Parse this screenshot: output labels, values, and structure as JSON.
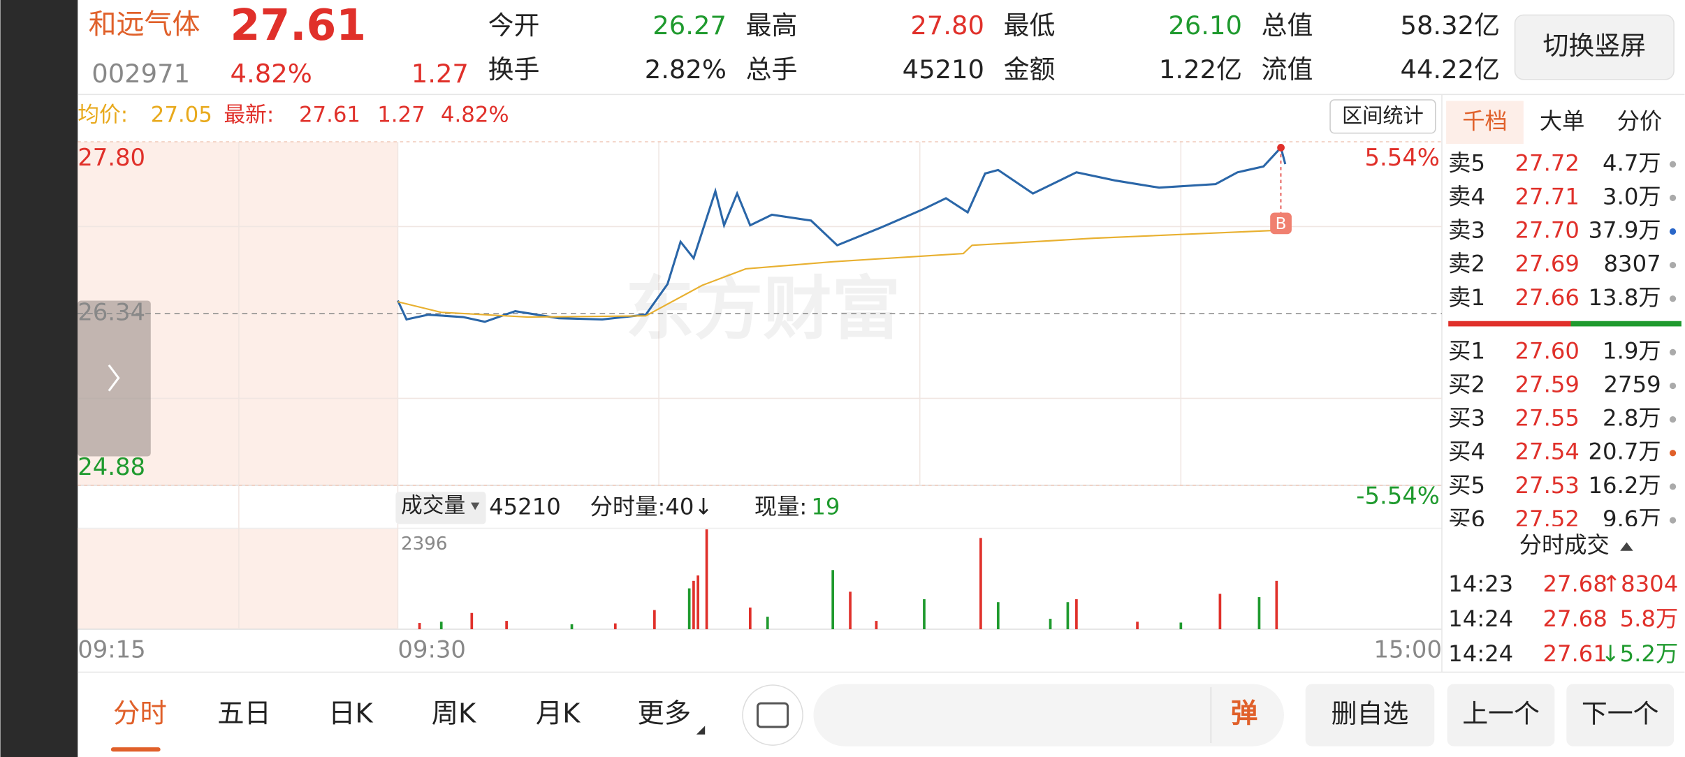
{
  "header": {
    "name": "和远气体",
    "price": "27.61",
    "code": "002971",
    "change_pct": "4.82%",
    "change": "1.27",
    "stats": [
      [
        "今开",
        "26.27"
      ],
      [
        "最高",
        "27.80"
      ],
      [
        "最低",
        "26.10"
      ],
      [
        "总值",
        "58.32亿"
      ],
      [
        "换手",
        "2.82%"
      ],
      [
        "总手",
        "45210"
      ],
      [
        "金额",
        "1.22亿"
      ],
      [
        "流值",
        "44.22亿"
      ]
    ],
    "button": "切换竖屏"
  },
  "chart_data": {
    "type": "line",
    "avg_label": "均价:",
    "avg": "27.05",
    "latest_label": "最新:",
    "latest": "27.61",
    "change": "1.27",
    "change_pct": "4.82%",
    "range_button": "区间统计",
    "ylim": [
      24.88,
      27.8
    ],
    "yticks": [
      {
        "value": 24.88,
        "label": "24.88"
      },
      {
        "value": 26.34,
        "label": "26.34"
      },
      {
        "value": 27.8,
        "label": "27.80"
      }
    ],
    "pct_high": "5.54%",
    "pct_low": "-5.54%",
    "xlim": [
      0,
      240
    ],
    "xticks": [
      {
        "value": 0,
        "label": "09:30"
      },
      {
        "value": 240,
        "label": "15:00"
      }
    ],
    "pre_label": "09:15",
    "watermark": "东方财富",
    "series": [
      {
        "color": "#2a66a8",
        "x": [
          0,
          2,
          7,
          15,
          20,
          27,
          37,
          47,
          57,
          62,
          65,
          68,
          73,
          75,
          78,
          81,
          86,
          95,
          101,
          111,
          121,
          126,
          131,
          135,
          138,
          146,
          156,
          165,
          175,
          188,
          193,
          199,
          203,
          204
        ],
        "values": [
          26.45,
          26.29,
          26.33,
          26.31,
          26.27,
          26.36,
          26.3,
          26.29,
          26.33,
          26.59,
          26.95,
          26.81,
          27.38,
          27.09,
          27.36,
          27.09,
          27.18,
          27.13,
          26.92,
          27.07,
          27.23,
          27.32,
          27.2,
          27.53,
          27.56,
          27.36,
          27.54,
          27.47,
          27.41,
          27.44,
          27.54,
          27.59,
          27.75,
          27.61
        ]
      },
      {
        "color": "#e8b030",
        "x": [
          0,
          10,
          30,
          57,
          70,
          80,
          100,
          130,
          132,
          160,
          204
        ],
        "values": [
          26.44,
          26.35,
          26.31,
          26.32,
          26.58,
          26.72,
          26.78,
          26.85,
          26.92,
          26.98,
          27.05
        ]
      }
    ],
    "marker": {
      "label": "B",
      "x": 203,
      "value": 27.75
    }
  },
  "volume": {
    "label": "成交量",
    "total": "45210",
    "ma": "分时量:40↓",
    "now_label": "现量:",
    "now": "19",
    "ylim": [
      0,
      2396
    ],
    "yticks": [
      2396
    ],
    "up_color": "#e0302a",
    "down_color": "#1f9a2e",
    "x_up": [
      5,
      17,
      25,
      50,
      59,
      68,
      69,
      71,
      81,
      104,
      110,
      134,
      156,
      170,
      189,
      202
    ],
    "up": [
      150,
      390,
      200,
      140,
      460,
      1160,
      1290,
      2396,
      520,
      900,
      200,
      2190,
      720,
      180,
      850,
      1160
    ],
    "x_down": [
      10,
      40,
      67,
      85,
      100,
      121,
      138,
      150,
      154,
      180,
      198
    ],
    "down": [
      180,
      120,
      980,
      300,
      1420,
      720,
      650,
      250,
      650,
      160,
      770
    ]
  },
  "order_book": {
    "tabs": [
      "千档",
      "大单",
      "分价"
    ],
    "asks": [
      [
        "卖5",
        "27.72",
        "4.7万"
      ],
      [
        "卖4",
        "27.71",
        "3.0万"
      ],
      [
        "卖3",
        "27.70",
        "37.9万"
      ],
      [
        "卖2",
        "27.69",
        "8307"
      ],
      [
        "卖1",
        "27.66",
        "13.8万"
      ]
    ],
    "bids": [
      [
        "买1",
        "27.60",
        "1.9万"
      ],
      [
        "买2",
        "27.59",
        "2759"
      ],
      [
        "买3",
        "27.55",
        "2.8万"
      ],
      [
        "买4",
        "27.54",
        "20.7万"
      ],
      [
        "买5",
        "27.53",
        "16.2万"
      ],
      [
        "买6",
        "27.52",
        "9.6万"
      ]
    ]
  },
  "trades": {
    "title": "分时成交",
    "rows": [
      [
        "14:23",
        "27.68",
        "↑8304"
      ],
      [
        "14:24",
        "27.68",
        "5.8万"
      ],
      [
        "14:24",
        "27.61",
        "↓5.2万"
      ]
    ]
  },
  "bottom": {
    "tabs": [
      "分时",
      "五日",
      "日K",
      "周K",
      "月K",
      "更多"
    ],
    "input_button": "弹",
    "buttons": [
      "删自选",
      "上一个",
      "下一个"
    ]
  }
}
